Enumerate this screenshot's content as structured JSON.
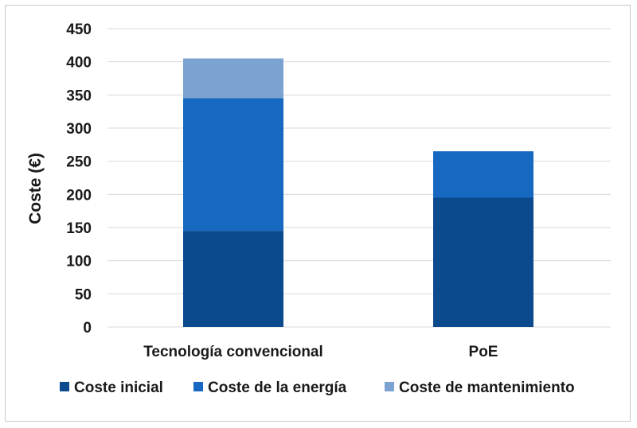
{
  "chart_data": {
    "type": "bar",
    "stacked": true,
    "title": "",
    "xlabel": "",
    "ylabel": "Coste (€)",
    "ylim": [
      0,
      450
    ],
    "yticks": [
      0,
      50,
      100,
      150,
      200,
      250,
      300,
      350,
      400,
      450
    ],
    "grid": true,
    "legend_position": "bottom",
    "categories": [
      "Tecnología convencional",
      "PoE"
    ],
    "series": [
      {
        "name": "Coste inicial",
        "color": "#0b4a8c",
        "values": [
          145,
          195
        ]
      },
      {
        "name": "Coste de la energía",
        "color": "#1668c0",
        "values": [
          200,
          70
        ]
      },
      {
        "name": "Coste de mantenimiento",
        "color": "#7ba2d1",
        "values": [
          60,
          0
        ]
      }
    ]
  }
}
